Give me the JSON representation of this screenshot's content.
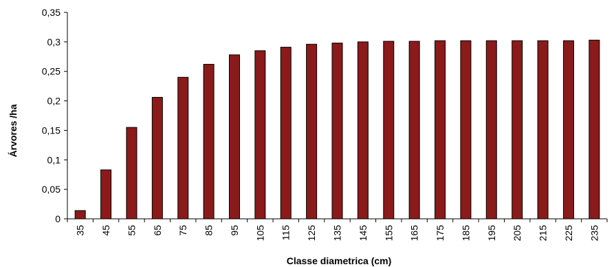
{
  "chart_data": {
    "type": "bar",
    "title": "",
    "xlabel": "Classe diametrica (cm)",
    "ylabel": "Árvores /ha",
    "ylim": [
      0,
      0.35
    ],
    "yticks": [
      "0",
      "0,05",
      "0,1",
      "0,15",
      "0,2",
      "0,25",
      "0,3",
      "0,35"
    ],
    "categories": [
      "35",
      "45",
      "55",
      "65",
      "75",
      "85",
      "95",
      "105",
      "115",
      "125",
      "135",
      "145",
      "155",
      "165",
      "175",
      "185",
      "195",
      "205",
      "215",
      "225",
      "235"
    ],
    "values": [
      0.014,
      0.083,
      0.155,
      0.206,
      0.24,
      0.262,
      0.278,
      0.285,
      0.291,
      0.296,
      0.298,
      0.3,
      0.301,
      0.301,
      0.302,
      0.302,
      0.302,
      0.302,
      0.302,
      0.302,
      0.303
    ],
    "grid": false,
    "legend": "none",
    "bar_color": "#8b1a1a",
    "bar_outline": "#000000"
  }
}
